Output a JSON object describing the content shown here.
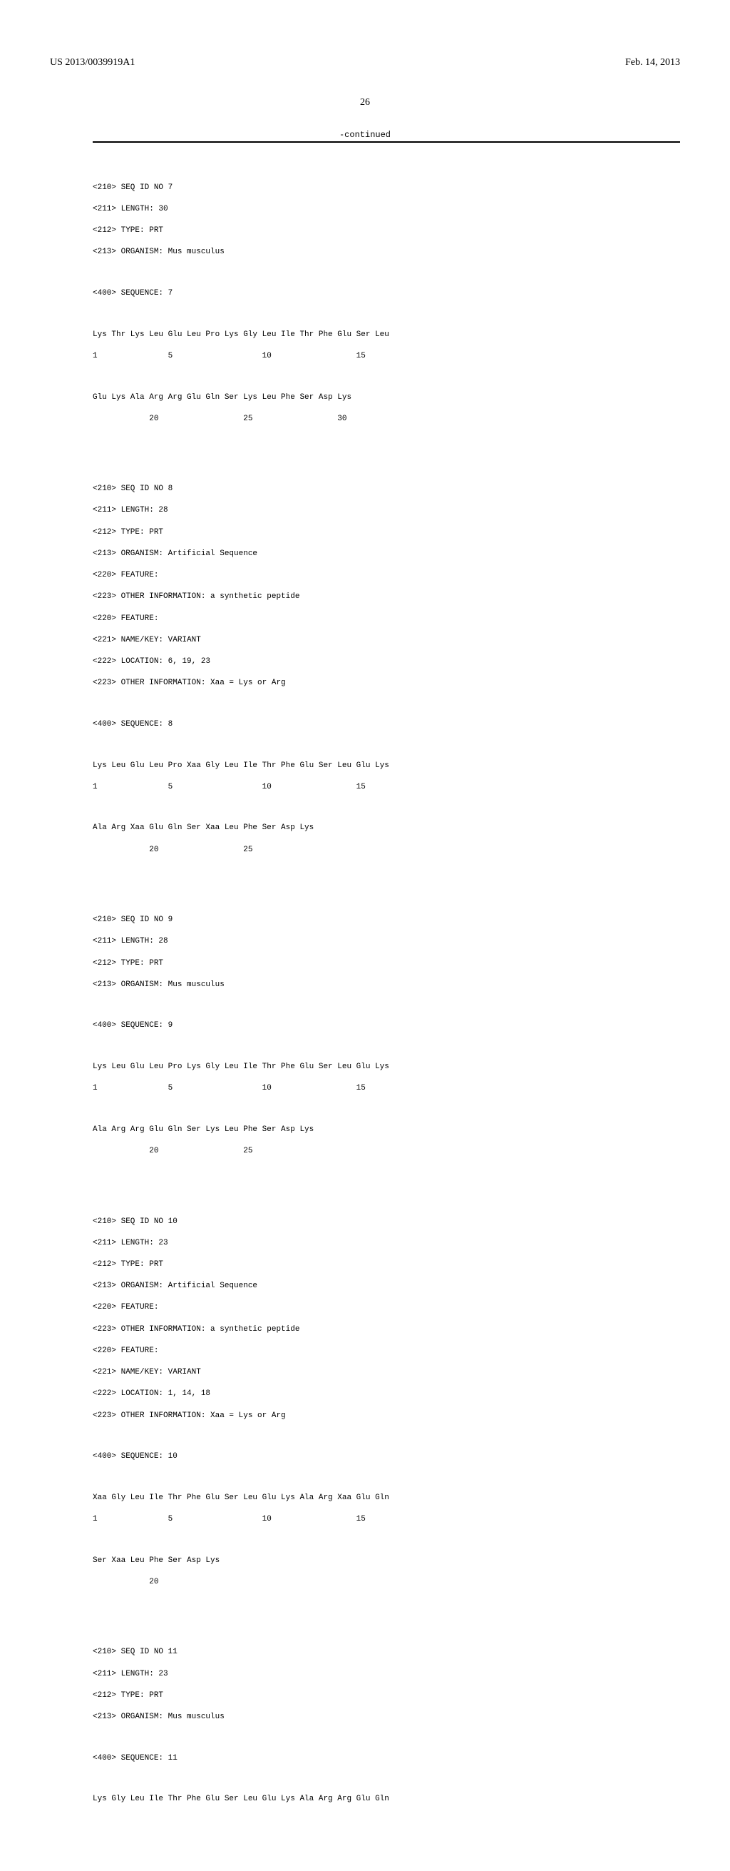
{
  "header": {
    "pub_number": "US 2013/0039919A1",
    "pub_date": "Feb. 14, 2013"
  },
  "page_number": "26",
  "continued_label": "-continued",
  "sequences": [
    {
      "metadata": [
        "<210> SEQ ID NO 7",
        "<211> LENGTH: 30",
        "<212> TYPE: PRT",
        "<213> ORGANISM: Mus musculus"
      ],
      "seq_label": "<400> SEQUENCE: 7",
      "lines": [
        {
          "seq": "Lys Thr Lys Leu Glu Leu Pro Lys Gly Leu Ile Thr Phe Glu Ser Leu",
          "pos": "1               5                   10                  15"
        },
        {
          "seq": "Glu Lys Ala Arg Arg Glu Gln Ser Lys Leu Phe Ser Asp Lys",
          "pos": "            20                  25                  30"
        }
      ]
    },
    {
      "metadata": [
        "<210> SEQ ID NO 8",
        "<211> LENGTH: 28",
        "<212> TYPE: PRT",
        "<213> ORGANISM: Artificial Sequence",
        "<220> FEATURE:",
        "<223> OTHER INFORMATION: a synthetic peptide",
        "<220> FEATURE:",
        "<221> NAME/KEY: VARIANT",
        "<222> LOCATION: 6, 19, 23",
        "<223> OTHER INFORMATION: Xaa = Lys or Arg"
      ],
      "seq_label": "<400> SEQUENCE: 8",
      "lines": [
        {
          "seq": "Lys Leu Glu Leu Pro Xaa Gly Leu Ile Thr Phe Glu Ser Leu Glu Lys",
          "pos": "1               5                   10                  15"
        },
        {
          "seq": "Ala Arg Xaa Glu Gln Ser Xaa Leu Phe Ser Asp Lys",
          "pos": "            20                  25"
        }
      ]
    },
    {
      "metadata": [
        "<210> SEQ ID NO 9",
        "<211> LENGTH: 28",
        "<212> TYPE: PRT",
        "<213> ORGANISM: Mus musculus"
      ],
      "seq_label": "<400> SEQUENCE: 9",
      "lines": [
        {
          "seq": "Lys Leu Glu Leu Pro Lys Gly Leu Ile Thr Phe Glu Ser Leu Glu Lys",
          "pos": "1               5                   10                  15"
        },
        {
          "seq": "Ala Arg Arg Glu Gln Ser Lys Leu Phe Ser Asp Lys",
          "pos": "            20                  25"
        }
      ]
    },
    {
      "metadata": [
        "<210> SEQ ID NO 10",
        "<211> LENGTH: 23",
        "<212> TYPE: PRT",
        "<213> ORGANISM: Artificial Sequence",
        "<220> FEATURE:",
        "<223> OTHER INFORMATION: a synthetic peptide",
        "<220> FEATURE:",
        "<221> NAME/KEY: VARIANT",
        "<222> LOCATION: 1, 14, 18",
        "<223> OTHER INFORMATION: Xaa = Lys or Arg"
      ],
      "seq_label": "<400> SEQUENCE: 10",
      "lines": [
        {
          "seq": "Xaa Gly Leu Ile Thr Phe Glu Ser Leu Glu Lys Ala Arg Xaa Glu Gln",
          "pos": "1               5                   10                  15"
        },
        {
          "seq": "Ser Xaa Leu Phe Ser Asp Lys",
          "pos": "            20"
        }
      ]
    },
    {
      "metadata": [
        "<210> SEQ ID NO 11",
        "<211> LENGTH: 23",
        "<212> TYPE: PRT",
        "<213> ORGANISM: Mus musculus"
      ],
      "seq_label": "<400> SEQUENCE: 11",
      "lines": [
        {
          "seq": "Lys Gly Leu Ile Thr Phe Glu Ser Leu Glu Lys Ala Arg Arg Glu Gln",
          "pos": ""
        }
      ]
    }
  ]
}
